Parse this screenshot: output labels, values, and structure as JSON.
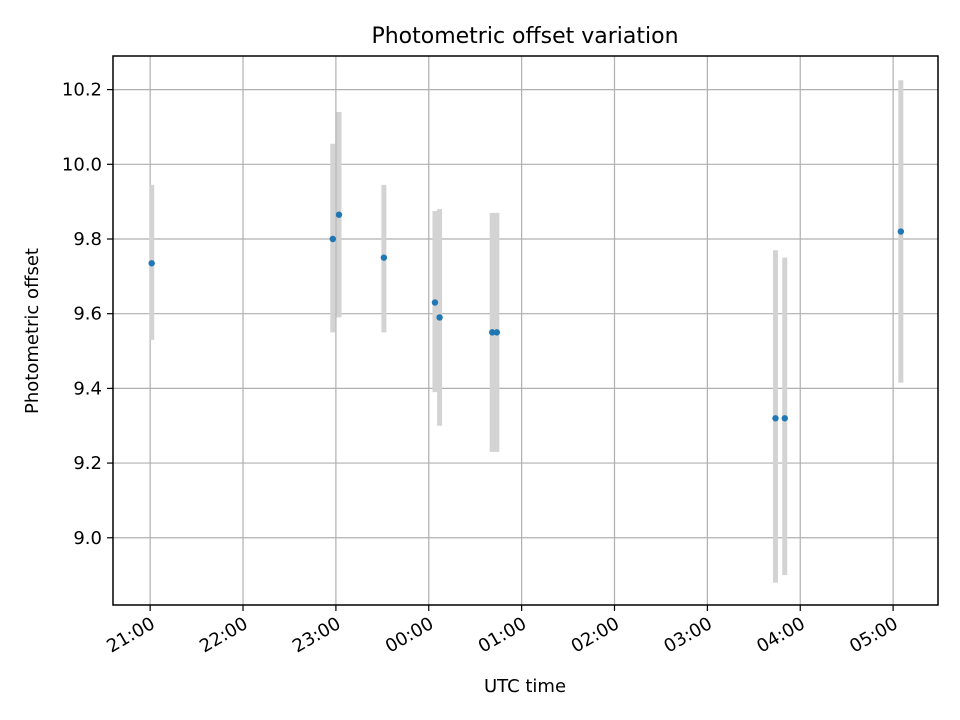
{
  "chart_data": {
    "type": "scatter",
    "title": "Photometric offset variation",
    "xlabel": "UTC time",
    "ylabel": "Photometric offset",
    "x_axis": {
      "type": "time",
      "range": [
        "20:36",
        "05:29"
      ],
      "ticks": [
        "21:00",
        "22:00",
        "23:00",
        "00:00",
        "01:00",
        "02:00",
        "03:00",
        "04:00",
        "05:00"
      ]
    },
    "y_axis": {
      "range": [
        8.82,
        10.29
      ],
      "ticks": [
        "9.0",
        "9.2",
        "9.4",
        "9.6",
        "9.8",
        "10.0",
        "10.2"
      ]
    },
    "grid": true,
    "series_color": "#1f77b4",
    "errorbar_color": "#d3d3d3",
    "points": [
      {
        "time": "21:01",
        "y": 9.735,
        "y_low": 9.53,
        "y_high": 9.945
      },
      {
        "time": "22:58",
        "y": 9.8,
        "y_low": 9.55,
        "y_high": 10.055
      },
      {
        "time": "23:02",
        "y": 9.865,
        "y_low": 9.59,
        "y_high": 10.14
      },
      {
        "time": "23:31",
        "y": 9.75,
        "y_low": 9.55,
        "y_high": 9.945
      },
      {
        "time": "00:04",
        "y": 9.63,
        "y_low": 9.39,
        "y_high": 9.875
      },
      {
        "time": "00:07",
        "y": 9.59,
        "y_low": 9.3,
        "y_high": 9.88
      },
      {
        "time": "00:41",
        "y": 9.55,
        "y_low": 9.23,
        "y_high": 9.87
      },
      {
        "time": "00:44",
        "y": 9.55,
        "y_low": 9.23,
        "y_high": 9.87
      },
      {
        "time": "03:44",
        "y": 9.32,
        "y_low": 8.88,
        "y_high": 9.77
      },
      {
        "time": "03:50",
        "y": 9.32,
        "y_low": 8.9,
        "y_high": 9.75
      },
      {
        "time": "05:05",
        "y": 9.82,
        "y_low": 9.415,
        "y_high": 10.225
      }
    ]
  }
}
